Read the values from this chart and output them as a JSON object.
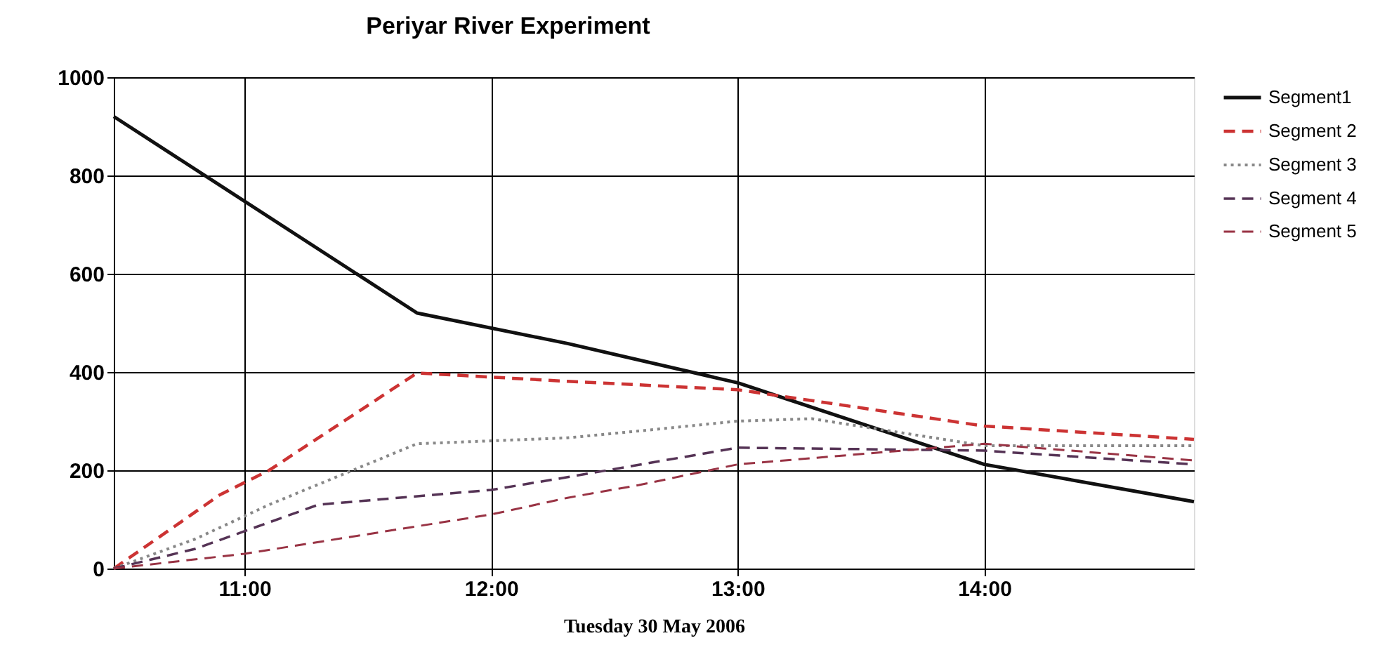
{
  "chart_data": {
    "type": "line",
    "title": "Periyar River Experiment",
    "xlabel": "Tuesday 30 May 2006",
    "xlim": [
      10.47,
      14.85
    ],
    "xticks": [
      {
        "value": 11,
        "label": "11:00"
      },
      {
        "value": 12,
        "label": "12:00"
      },
      {
        "value": 13,
        "label": "13:00"
      },
      {
        "value": 14,
        "label": "14:00"
      }
    ],
    "ylim": [
      0,
      1000
    ],
    "yticks": [
      0,
      200,
      400,
      600,
      800,
      1000
    ],
    "grid": true,
    "legend": "right",
    "marker": "none",
    "series": [
      {
        "name": "Segment1",
        "color": "#111111",
        "line_style": "solid",
        "x": [
          10.47,
          11.7,
          12.31,
          13.0,
          14.0,
          14.85
        ],
        "values": [
          920,
          520,
          458,
          378,
          212,
          136
        ]
      },
      {
        "name": "Segment 2",
        "color": "#cc3333",
        "line_style": "dashed",
        "x": [
          10.47,
          10.7,
          10.9,
          11.1,
          11.7,
          12.31,
          13.0,
          14.0,
          14.85
        ],
        "values": [
          0,
          80,
          150,
          200,
          398,
          381,
          364,
          290,
          263
        ]
      },
      {
        "name": "Segment 3",
        "color": "#888888",
        "line_style": "dotted",
        "x": [
          10.47,
          10.8,
          11.1,
          11.7,
          12.31,
          12.6,
          13.0,
          13.3,
          14.0,
          14.85
        ],
        "values": [
          0,
          60,
          130,
          254,
          266,
          280,
          300,
          305,
          250,
          250
        ]
      },
      {
        "name": "Segment 4",
        "color": "#553355",
        "line_style": "dashed",
        "x": [
          10.47,
          10.8,
          11.3,
          12.0,
          12.31,
          13.0,
          14.0,
          14.85
        ],
        "values": [
          0,
          40,
          130,
          160,
          186,
          246,
          240,
          212
        ]
      },
      {
        "name": "Segment 5",
        "color": "#993344",
        "line_style": "dashed",
        "x": [
          10.47,
          11.0,
          12.0,
          12.31,
          12.6,
          13.0,
          14.0,
          14.85
        ],
        "values": [
          0,
          30,
          110,
          144,
          170,
          212,
          254,
          220
        ]
      }
    ]
  }
}
